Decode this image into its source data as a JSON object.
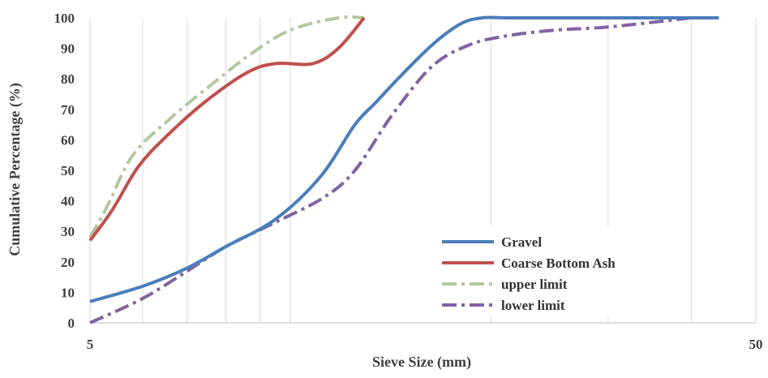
{
  "chart_data": {
    "type": "line",
    "title": "",
    "xlabel": "Sieve Size (mm)",
    "ylabel": "Cumulative Percentage (%)",
    "xscale": "log",
    "xlim": [
      5,
      50
    ],
    "ylim": [
      0,
      100
    ],
    "x_tick_labels": [
      "5",
      "50"
    ],
    "y_ticks": [
      0,
      10,
      20,
      30,
      40,
      50,
      60,
      70,
      80,
      90,
      100
    ],
    "grid": "vertical log minor gridlines",
    "legend_position": "bottom-right",
    "series": [
      {
        "name": "Gravel",
        "color": "#4a7ebb",
        "dash": "solid",
        "x": [
          5,
          6.0,
          7.0,
          8.0,
          9.5,
          11.1,
          12.5,
          13.4,
          14.5,
          16.3,
          18.0,
          19.4,
          21.0,
          24.1,
          30.0,
          44.0
        ],
        "y": [
          7,
          12,
          18,
          25,
          34,
          48,
          65,
          72,
          80,
          91,
          98,
          100,
          100,
          100,
          100,
          100
        ]
      },
      {
        "name": "Coarse Bottom Ash",
        "color": "#c0504d",
        "dash": "solid",
        "x": [
          5,
          5.4,
          5.9,
          6.5,
          7.4,
          8.6,
          9.5,
          10.8,
          11.8,
          12.9
        ],
        "y": [
          27,
          37,
          51,
          61,
          72,
          82,
          85,
          85,
          90,
          100
        ]
      },
      {
        "name": "upper limit",
        "color": "#b4c7a0",
        "dash": "dash-dot",
        "x": [
          5,
          5.3,
          5.8,
          6.6,
          7.6,
          8.7,
          10.0,
          11.8,
          12.9
        ],
        "y": [
          28,
          38,
          55,
          67,
          78,
          88,
          96,
          100,
          100
        ]
      },
      {
        "name": "lower limit",
        "color": "#8064a2",
        "dash": "dash-dot",
        "x": [
          5,
          6.0,
          7.0,
          8.0,
          9.5,
          11.2,
          12.5,
          14.2,
          16.3,
          18.5,
          21.0,
          25.0,
          30.0,
          40.0
        ],
        "y": [
          0,
          8,
          17,
          25,
          33,
          41,
          50,
          68,
          84,
          91,
          94,
          96,
          97,
          100
        ]
      }
    ]
  }
}
